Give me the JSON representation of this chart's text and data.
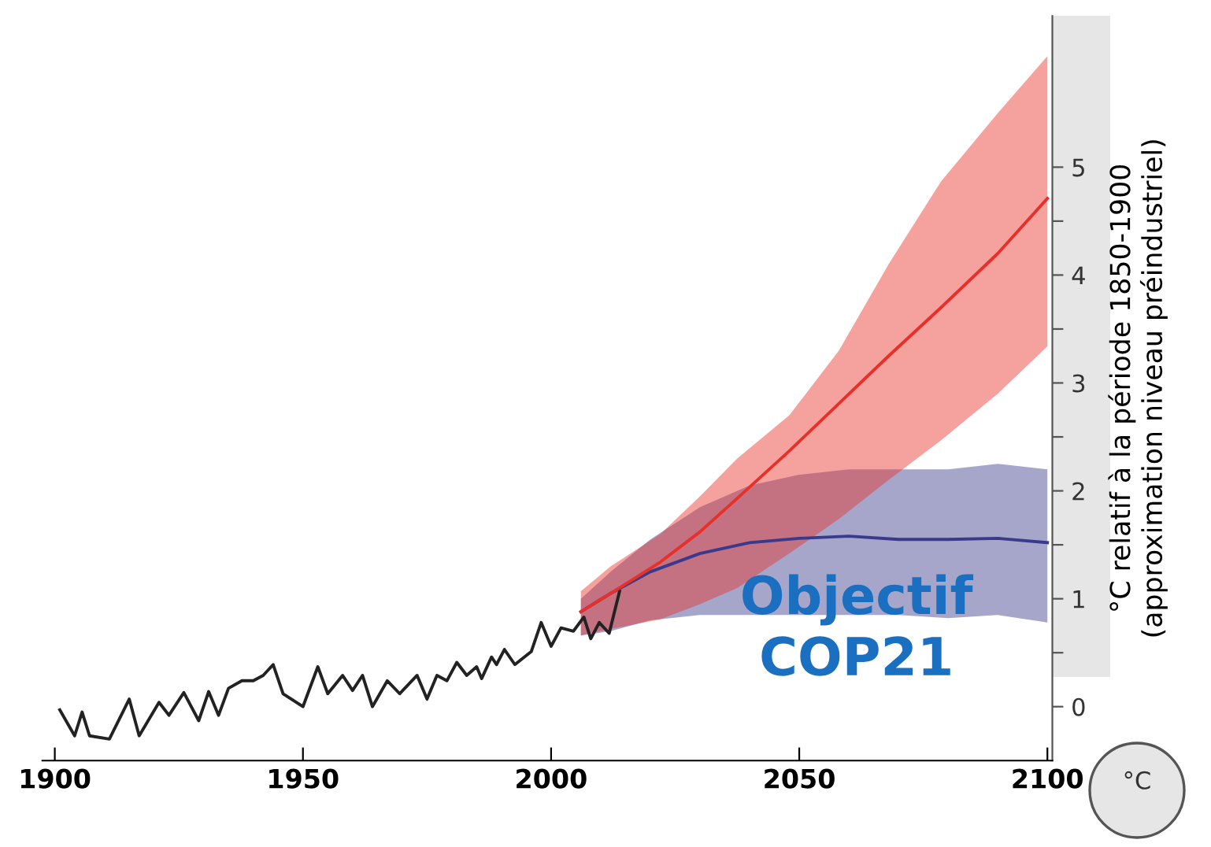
{
  "chart_data": {
    "type": "line",
    "ylabel": "°C relatif à la période 1850-1900\n(approximation niveau préindustriel)",
    "annotations": [
      "Objectif\nCOP21",
      "°C"
    ],
    "xlim": [
      1897.5,
      2101
    ],
    "xticks": [
      1900,
      1950,
      2000,
      2050,
      2100
    ],
    "ylim": [
      -0.5,
      6.4
    ],
    "yticks": [
      0,
      {
        "value": 0.5,
        "label": null
      },
      1,
      {
        "value": 1.5,
        "label": null
      },
      2,
      {
        "value": 2.5,
        "label": null
      },
      3,
      {
        "value": 3.5,
        "label": null
      },
      4,
      {
        "value": 4.5,
        "label": null
      },
      5
    ],
    "grid": false,
    "legend": false,
    "marker": "none",
    "line_style": "solid",
    "series": [
      {
        "color": "#222222",
        "x": [
          1901,
          1904,
          1905.5,
          1907,
          1911,
          1915,
          1917,
          1921,
          1923,
          1926,
          1929,
          1931,
          1933,
          1935,
          1937.7,
          1940,
          1942,
          1944,
          1946,
          1950,
          1953,
          1955,
          1958,
          1960,
          1962,
          1964,
          1967,
          1969.5,
          1973,
          1975,
          1977,
          1979,
          1981,
          1983,
          1985,
          1986,
          1988,
          1989,
          1990.6,
          1992.7,
          1996,
          1998,
          2000,
          2002,
          2004.5,
          2006.6,
          2008,
          2009.7,
          2011.7,
          2013.8
        ],
        "values": [
          -0.03,
          -0.27,
          -0.05,
          -0.27,
          -0.3,
          0.07,
          -0.27,
          0.04,
          -0.08,
          0.13,
          -0.13,
          0.14,
          -0.08,
          0.17,
          0.24,
          0.24,
          0.29,
          0.39,
          0.12,
          0.0,
          0.37,
          0.12,
          0.29,
          0.15,
          0.29,
          0.0,
          0.24,
          0.12,
          0.29,
          0.07,
          0.29,
          0.24,
          0.41,
          0.29,
          0.37,
          0.26,
          0.46,
          0.39,
          0.53,
          0.39,
          0.51,
          0.78,
          0.56,
          0.73,
          0.7,
          0.83,
          0.63,
          0.78,
          0.68,
          1.07
        ]
      },
      {
        "color": "#3a3a8c",
        "x": [
          2006,
          2012,
          2020,
          2030,
          2040,
          2050,
          2060,
          2070,
          2080,
          2090,
          2100
        ],
        "values": [
          0.88,
          1.05,
          1.25,
          1.42,
          1.52,
          1.56,
          1.58,
          1.55,
          1.55,
          1.56,
          1.52
        ],
        "upper": [
          1.0,
          1.25,
          1.55,
          1.85,
          2.05,
          2.15,
          2.2,
          2.2,
          2.2,
          2.25,
          2.2
        ],
        "lower": [
          0.66,
          0.7,
          0.8,
          0.85,
          0.85,
          0.85,
          0.85,
          0.85,
          0.82,
          0.85,
          0.78
        ]
      },
      {
        "color": "#e8302a",
        "x": [
          2006,
          2012,
          2022,
          2030,
          2037.5,
          2048,
          2058,
          2068,
          2078.6,
          2090,
          2100
        ],
        "values": [
          0.88,
          1.05,
          1.34,
          1.62,
          1.93,
          2.37,
          2.81,
          3.25,
          3.7,
          4.2,
          4.71
        ],
        "upper": [
          1.07,
          1.3,
          1.6,
          1.95,
          2.3,
          2.7,
          3.3,
          4.1,
          4.87,
          5.5,
          6.03
        ],
        "lower": [
          0.66,
          0.72,
          0.81,
          0.95,
          1.1,
          1.42,
          1.74,
          2.1,
          2.47,
          2.9,
          3.34
        ]
      }
    ]
  }
}
